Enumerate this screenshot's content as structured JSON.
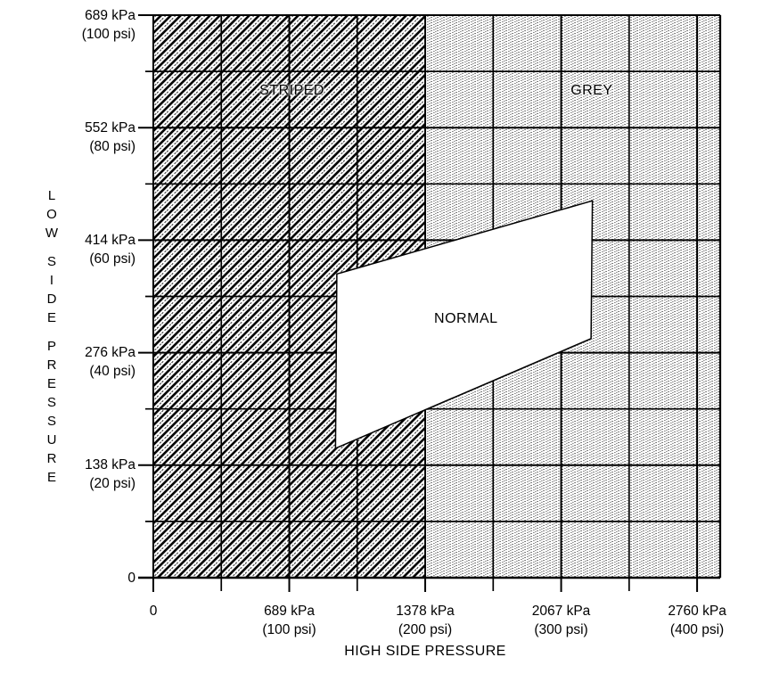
{
  "chart_data": {
    "type": "area",
    "subtype": "pressure-region-diagram",
    "title": "",
    "xlabel": "HIGH SIDE PRESSURE",
    "ylabel": "LOW SIDE PRESSURE",
    "grid": true,
    "xlim_psi": [
      0,
      417
    ],
    "ylim_psi": [
      0,
      100
    ],
    "x_ticks": [
      {
        "psi": 0,
        "kpa": 0,
        "line1": "0"
      },
      {
        "psi": 100,
        "kpa": 689,
        "line1": "689 kPa",
        "line2": "(100 psi)"
      },
      {
        "psi": 200,
        "kpa": 1378,
        "line1": "1378 kPa",
        "line2": "(200 psi)"
      },
      {
        "psi": 300,
        "kpa": 2067,
        "line1": "2067 kPa",
        "line2": "(300 psi)"
      },
      {
        "psi": 400,
        "kpa": 2760,
        "line1": "2760 kPa",
        "line2": "(400 psi)"
      }
    ],
    "x_minor_ticks_psi": [
      50,
      150,
      250,
      350
    ],
    "y_ticks": [
      {
        "psi": 100,
        "kpa": 689,
        "line1": "689 kPa",
        "line2": "(100 psi)"
      },
      {
        "psi": 80,
        "kpa": 552,
        "line1": "552 kPa",
        "line2": "(80 psi)"
      },
      {
        "psi": 60,
        "kpa": 414,
        "line1": "414 kPa",
        "line2": "(60 psi)"
      },
      {
        "psi": 40,
        "kpa": 276,
        "line1": "276 kPa",
        "line2": "(40 psi)"
      },
      {
        "psi": 20,
        "kpa": 138,
        "line1": "138 kPa",
        "line2": "(20 psi)"
      },
      {
        "psi": 0,
        "kpa": 0,
        "line1": "0"
      }
    ],
    "y_minor_ticks_psi": [
      10,
      30,
      50,
      70,
      90
    ],
    "regions": [
      {
        "id": "striped",
        "label": "STRIPED",
        "pattern": "diagonal-hatch",
        "x_psi": [
          0,
          200
        ],
        "y_psi": [
          0,
          100
        ],
        "label_pos_psi": [
          102,
          86.5
        ]
      },
      {
        "id": "grey",
        "label": "GREY",
        "pattern": "stipple-dots",
        "x_psi": [
          200,
          417
        ],
        "y_psi": [
          0,
          100
        ],
        "label_pos_psi": [
          322.5,
          86.5
        ]
      },
      {
        "id": "normal",
        "label": "NORMAL",
        "pattern": "white",
        "vertices_psi": [
          [
            135,
            54
          ],
          [
            323,
            67
          ],
          [
            322,
            42.5
          ],
          [
            134,
            23
          ]
        ],
        "label_pos_psi": [
          230,
          46
        ]
      }
    ],
    "colors": {
      "ink": "#000000",
      "paper": "#ffffff"
    }
  }
}
